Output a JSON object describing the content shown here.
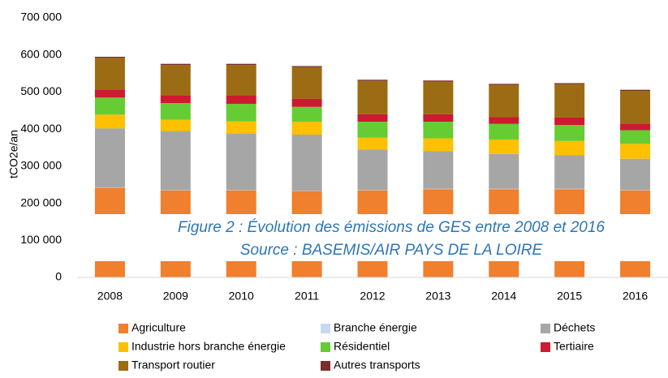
{
  "chart_data": {
    "type": "stacked_bar",
    "y_label": "tCO2e/an",
    "annotations": [
      "Figure 2 : Évolution des émissions de GES entre 2008 et 2016",
      "Source : BASEMIS/AIR PAYS DE LA LOIRE"
    ],
    "categories": [
      "2008",
      "2009",
      "2010",
      "2011",
      "2012",
      "2013",
      "2014",
      "2015",
      "2016"
    ],
    "series": [
      {
        "name": "Agriculture",
        "color": "#f07f2e",
        "values": [
          242000,
          235000,
          235000,
          233000,
          235000,
          238000,
          238000,
          238000,
          235000
        ]
      },
      {
        "name": "Branche énergie",
        "color": "#c6d9f1",
        "values": [
          1000,
          1000,
          1000,
          1000,
          1000,
          1000,
          1000,
          1000,
          1000
        ]
      },
      {
        "name": "Déchets",
        "color": "#a6a6a6",
        "values": [
          159000,
          159000,
          152000,
          151000,
          109000,
          102000,
          94000,
          91000,
          84000
        ]
      },
      {
        "name": "Industrie hors branche énergie",
        "color": "#ffc000",
        "values": [
          37000,
          30000,
          33000,
          35000,
          32000,
          34000,
          39000,
          38000,
          40000
        ]
      },
      {
        "name": "Résidentiel",
        "color": "#66cc33",
        "values": [
          46000,
          45000,
          47000,
          40000,
          43000,
          45000,
          42000,
          43000,
          37000
        ]
      },
      {
        "name": "Tertiaire",
        "color": "#cc1a30",
        "values": [
          22000,
          20000,
          22000,
          22000,
          20000,
          20000,
          18000,
          20000,
          18000
        ]
      },
      {
        "name": "Transport routier",
        "color": "#9c6c14",
        "values": [
          85000,
          83000,
          83000,
          85000,
          90000,
          88000,
          87000,
          90000,
          88000
        ]
      },
      {
        "name": "Autres transports",
        "color": "#7b2c2c",
        "values": [
          3000,
          3000,
          3000,
          3000,
          3000,
          3000,
          3000,
          3000,
          3000
        ]
      }
    ],
    "ylim": [
      0,
      700000
    ],
    "yticks": [
      0,
      {
        "value": 100000,
        "label": "100 000"
      },
      {
        "value": 200000,
        "label": "200 000"
      },
      {
        "value": 300000,
        "label": "300 000"
      },
      {
        "value": 400000,
        "label": "400 000"
      },
      {
        "value": 500000,
        "label": "500 000"
      },
      {
        "value": 600000,
        "label": "600 000"
      },
      {
        "value": 700000,
        "label": "700 000"
      }
    ],
    "legend": "bottom"
  }
}
